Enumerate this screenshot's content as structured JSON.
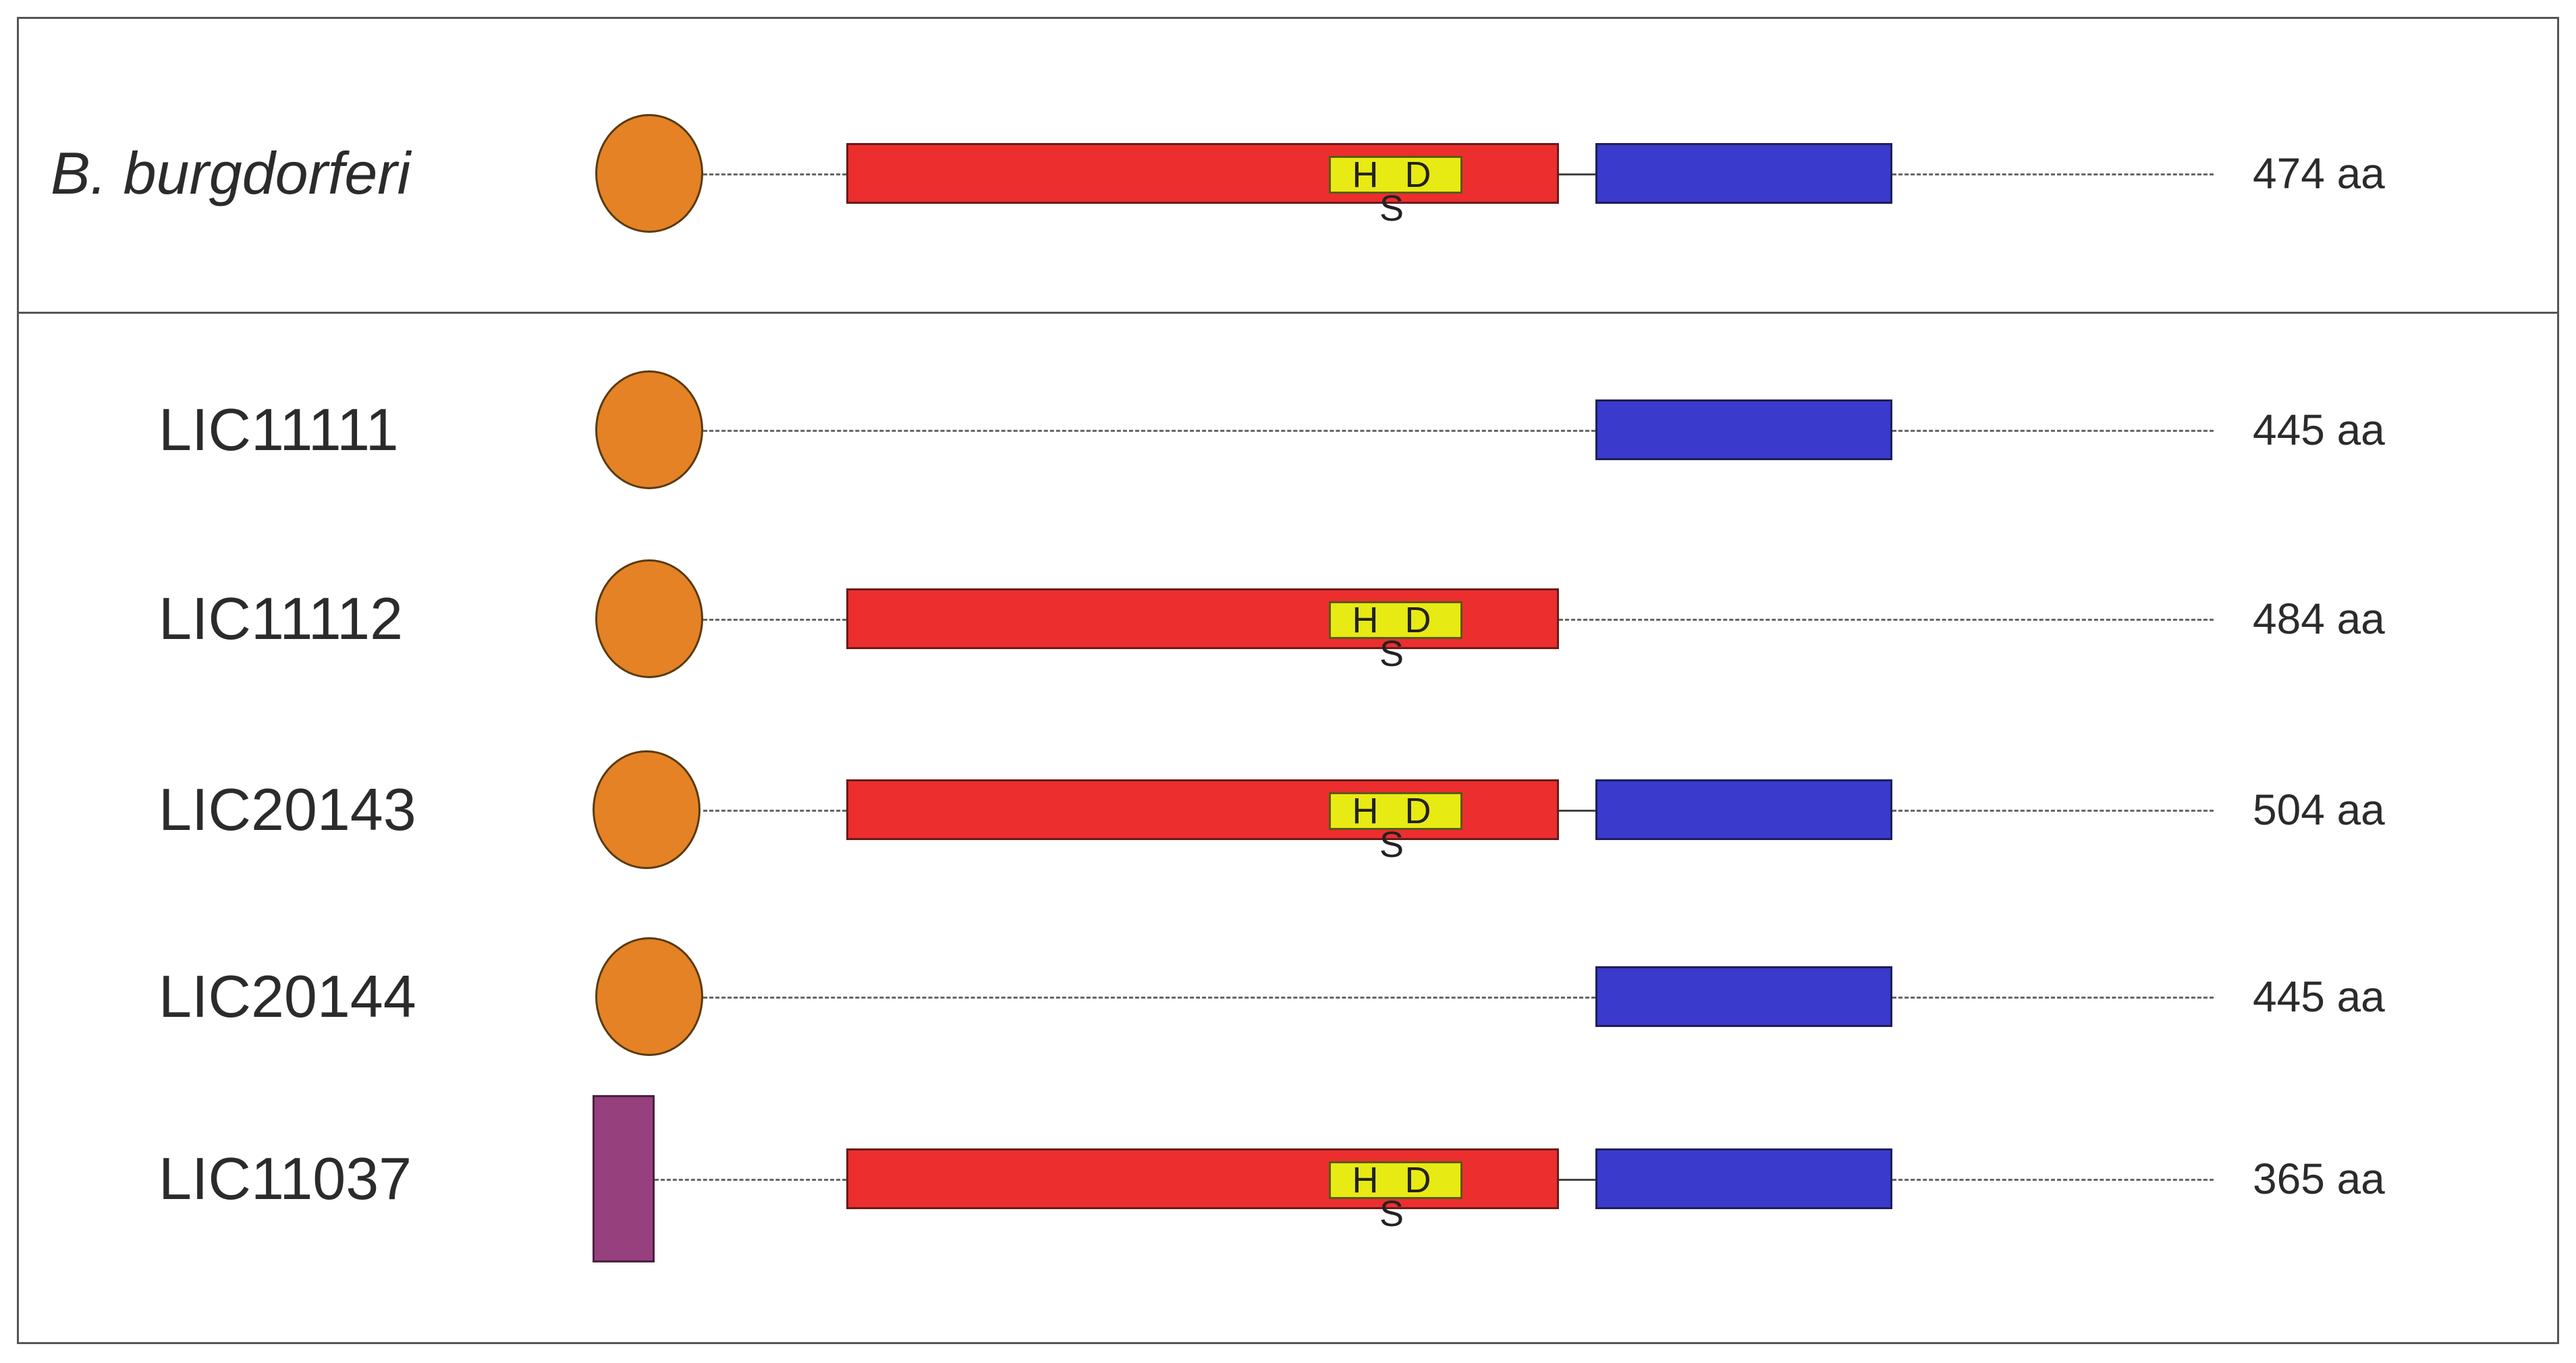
{
  "proteins": [
    {
      "name": "B. burgdorferi",
      "length": "474 aa",
      "hds_label": "H D S"
    },
    {
      "name": "LIC11111",
      "length": "445 aa"
    },
    {
      "name": "LIC11112",
      "length": "484 aa",
      "hds_label": "H D S"
    },
    {
      "name": "LIC20143",
      "length": "504 aa",
      "hds_label": "H D S"
    },
    {
      "name": "LIC20144",
      "length": "445 aa"
    },
    {
      "name": "LIC11037",
      "length": "365 aa",
      "hds_label": "H D S"
    }
  ],
  "colors": {
    "n_terminal_circle": "#e48225",
    "n_terminal_bar": "#96407e",
    "hds_domain": "#ec2e2e",
    "hds_motif": "#e8ea14",
    "c_terminal_domain": "#3a3acc"
  }
}
